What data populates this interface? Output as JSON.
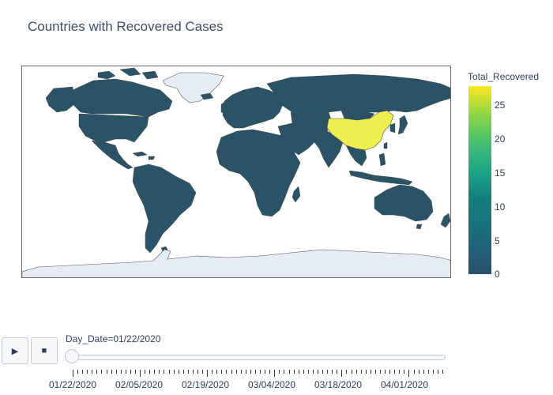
{
  "title": "Countries with Recovered Cases",
  "colorbar": {
    "title": "Total_Recovered",
    "ticks": [
      "25",
      "20",
      "15",
      "10",
      "5",
      "0"
    ],
    "range": [
      0,
      28
    ],
    "colorscale": "viridis"
  },
  "map": {
    "default_country_color": "#2a5367",
    "highlight_country": "China",
    "highlight_color": "#eeef4f",
    "no_data_color": "#e6ecf5",
    "border_color": "#444444"
  },
  "controls": {
    "play_icon": "play-icon",
    "stop_icon": "stop-icon",
    "play_label": "▶",
    "stop_label": "■"
  },
  "slider": {
    "label": "Day_Date=01/22/2020",
    "current_value": "01/22/2020",
    "tick_labels": [
      "01/22/2020",
      "02/05/2020",
      "02/19/2020",
      "03/04/2020",
      "03/18/2020",
      "04/01/2020"
    ]
  }
}
